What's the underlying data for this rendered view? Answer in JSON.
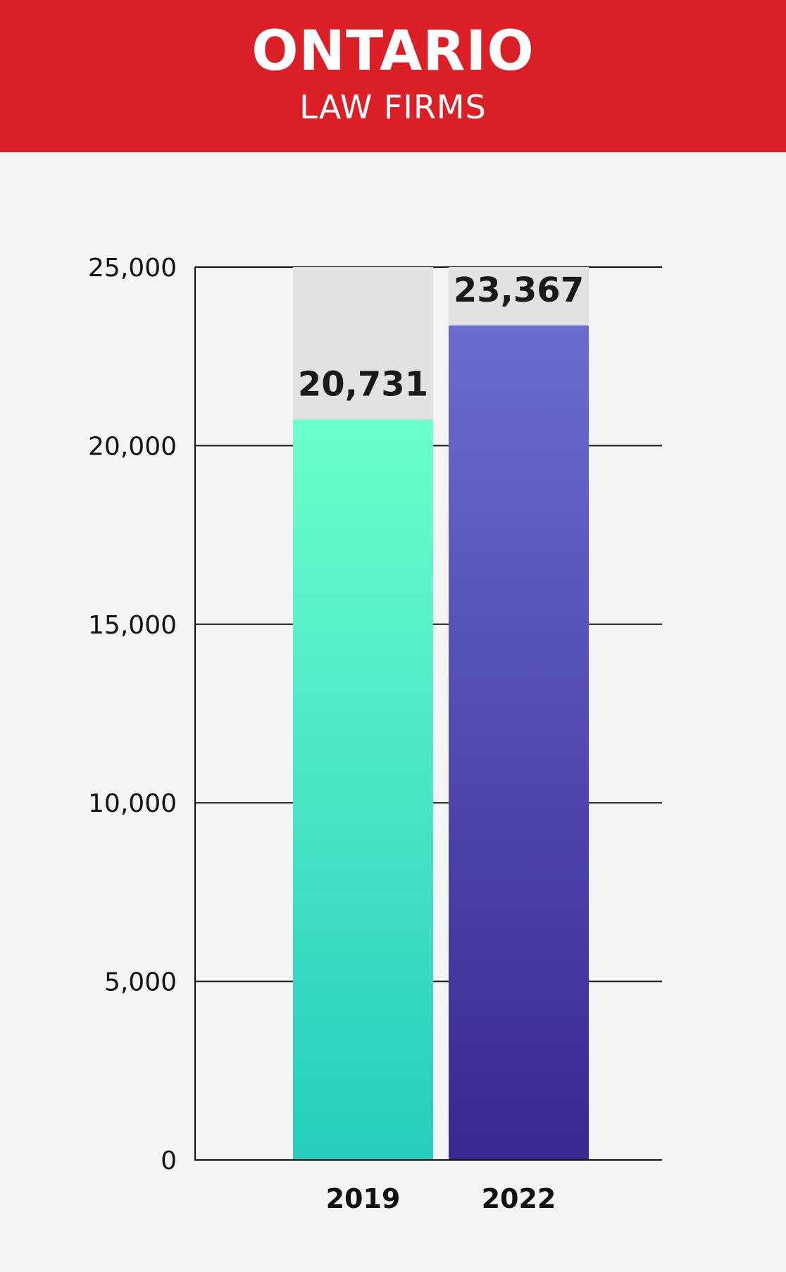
{
  "header": {
    "title": "ONTARIO",
    "subtitle": "LAW FIRMS",
    "background_color": "#da1f26"
  },
  "chart_data": {
    "type": "bar",
    "title": "ONTARIO",
    "subtitle": "LAW FIRMS",
    "categories": [
      "2019",
      "2022"
    ],
    "values": [
      20731,
      23367
    ],
    "value_labels": [
      "20,731",
      "23,367"
    ],
    "ylim": [
      0,
      25000
    ],
    "yticks": [
      0,
      5000,
      10000,
      15000,
      20000,
      25000
    ],
    "ytick_labels": [
      "0",
      "5,000",
      "10,000",
      "15,000",
      "20,000",
      "25,000"
    ],
    "xlabel": "",
    "ylabel": "",
    "grid": true,
    "legend": "none",
    "colors": [
      {
        "top": "#6bffcc",
        "bottom": "#26cdbd"
      },
      {
        "top": "#6a6ccf",
        "bottom": "#38288f"
      }
    ],
    "track_color": "#e2e2e2"
  }
}
